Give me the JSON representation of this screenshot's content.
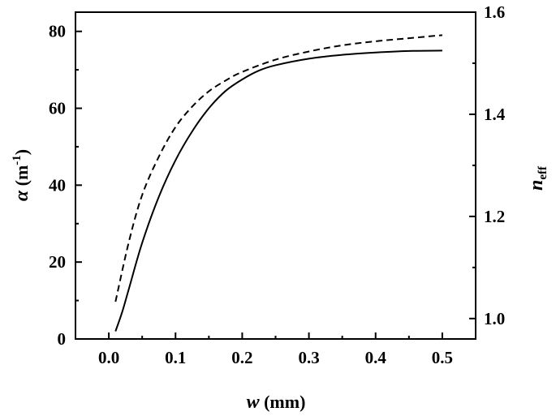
{
  "chart_data": {
    "type": "line",
    "xlabel": {
      "symbol": "w",
      "unit": " (mm)"
    },
    "ylabel_left": {
      "symbol": "α",
      "unit_open": " (m",
      "unit_exp": "-1",
      "unit_close": ")"
    },
    "ylabel_right": {
      "symbol": "n",
      "subscript": "eff"
    },
    "xlim": [
      -0.05,
      0.55
    ],
    "ylim_left": [
      0,
      85
    ],
    "ylim_right": [
      0.96,
      1.6
    ],
    "x_ticks": [
      0.0,
      0.1,
      0.2,
      0.3,
      0.4,
      0.5
    ],
    "x_tick_labels": [
      "0.0",
      "0.1",
      "0.2",
      "0.3",
      "0.4",
      "0.5"
    ],
    "y_left_ticks": [
      0,
      20,
      40,
      60,
      80
    ],
    "y_left_tick_labels": [
      "0",
      "20",
      "40",
      "60",
      "80"
    ],
    "y_right_ticks": [
      1.0,
      1.2,
      1.4,
      1.6
    ],
    "y_right_tick_labels": [
      "1.0",
      "1.2",
      "1.4",
      "1.6"
    ],
    "grid": false,
    "series": [
      {
        "axis": "left",
        "style": "solid",
        "x": [
          0.01,
          0.02,
          0.03,
          0.05,
          0.075,
          0.1,
          0.125,
          0.15,
          0.175,
          0.2,
          0.225,
          0.25,
          0.3,
          0.35,
          0.4,
          0.45,
          0.5
        ],
        "y": [
          2,
          7,
          13,
          25,
          37,
          46.5,
          54,
          60,
          64.5,
          67.5,
          69.8,
          71.2,
          72.9,
          73.9,
          74.5,
          74.9,
          75
        ]
      },
      {
        "axis": "right",
        "style": "dashed",
        "x": [
          0.01,
          0.03,
          0.05,
          0.075,
          0.1,
          0.125,
          0.15,
          0.175,
          0.2,
          0.25,
          0.3,
          0.35,
          0.4,
          0.45,
          0.5
        ],
        "y": [
          1.033,
          1.15,
          1.242,
          1.317,
          1.375,
          1.415,
          1.445,
          1.466,
          1.483,
          1.507,
          1.523,
          1.535,
          1.543,
          1.549,
          1.555
        ]
      }
    ]
  }
}
